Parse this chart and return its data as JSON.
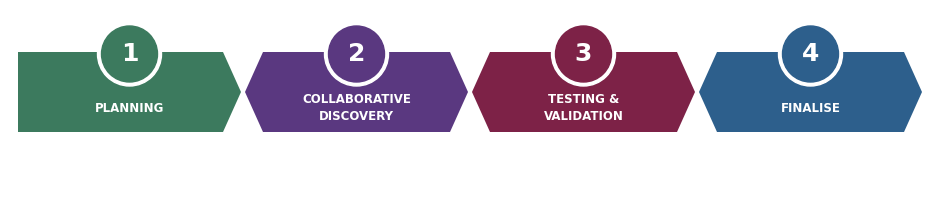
{
  "background_color": "#ffffff",
  "stages": [
    {
      "number": "1",
      "label": "PLANNING",
      "arrow_color": "#3c7a5e",
      "circle_color": "#3c7a5e"
    },
    {
      "number": "2",
      "label": "COLLABORATIVE\nDISCOVERY",
      "arrow_color": "#5a3880",
      "circle_color": "#5a3880"
    },
    {
      "number": "3",
      "label": "TESTING &\nVALIDATION",
      "arrow_color": "#7d2247",
      "circle_color": "#7d2247"
    },
    {
      "number": "4",
      "label": "FINALISE",
      "arrow_color": "#2d5f8c",
      "circle_color": "#2d5f8c"
    }
  ],
  "font_color": "#ffffff",
  "number_fontsize": 18,
  "label_fontsize": 8.5,
  "fig_width": 9.4,
  "fig_height": 2.0,
  "dpi": 100
}
